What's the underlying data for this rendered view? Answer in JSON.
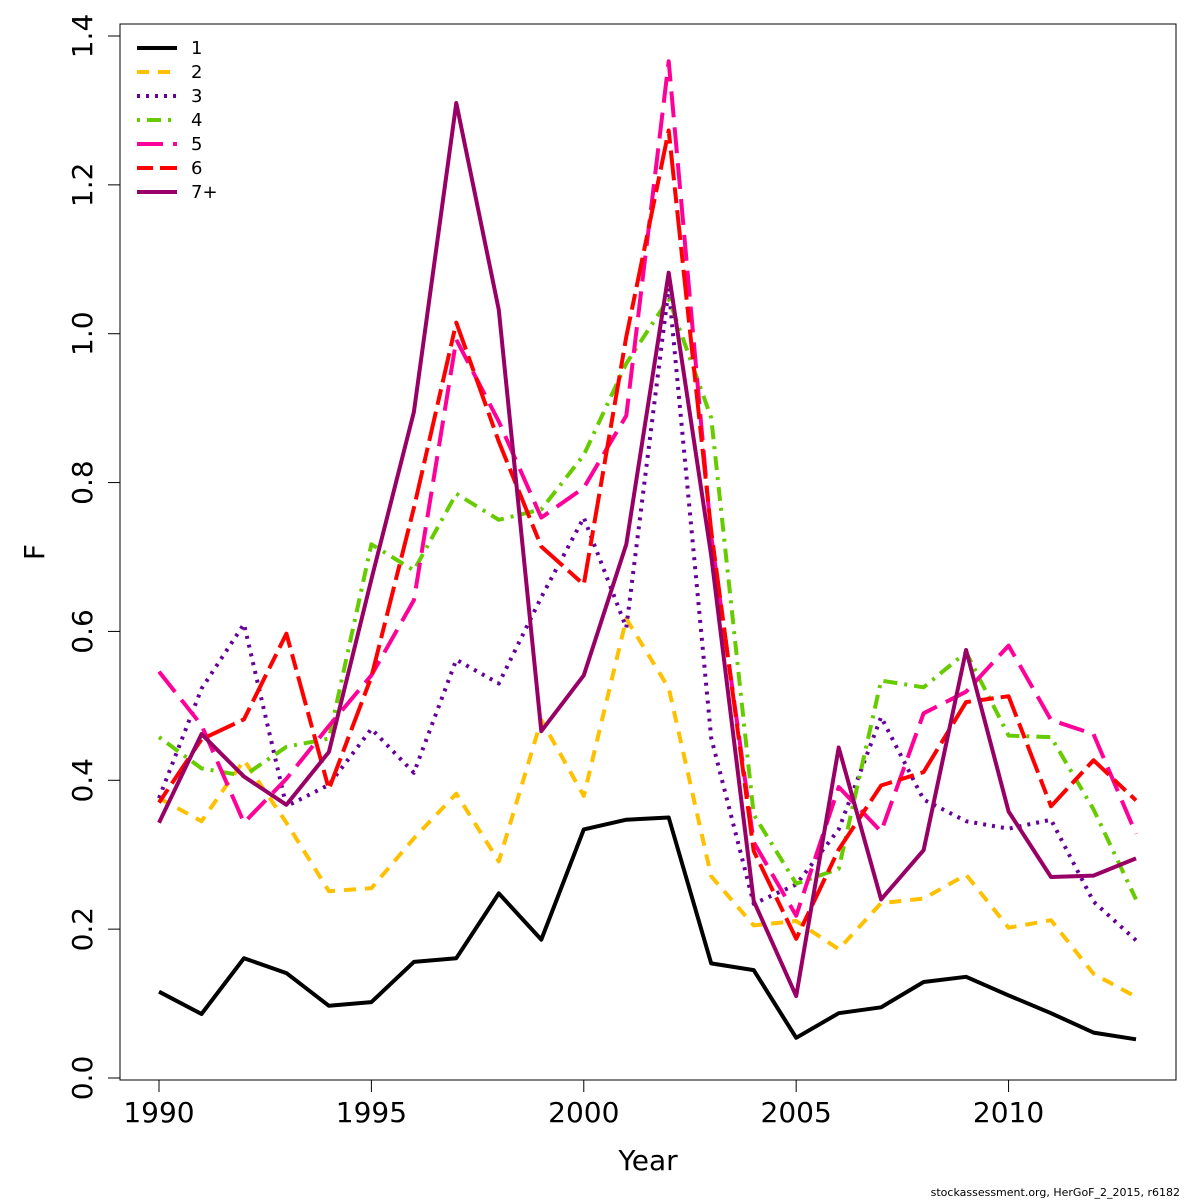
{
  "chart_data": {
    "type": "line",
    "title": "",
    "xlabel": "Year",
    "ylabel": "F",
    "xlim": [
      1989,
      2014
    ],
    "ylim": [
      0.0,
      1.4
    ],
    "x_ticks": [
      1990,
      1995,
      2000,
      2005,
      2010
    ],
    "y_ticks": [
      "0.0",
      "0.2",
      "0.4",
      "0.6",
      "0.8",
      "1.0",
      "1.2",
      "1.4"
    ],
    "legend_position": "top-left",
    "grid": false,
    "x": [
      1990,
      1991,
      1992,
      1993,
      1994,
      1995,
      1996,
      1997,
      1998,
      1999,
      2000,
      2001,
      2002,
      2003,
      2004,
      2005,
      2006,
      2007,
      2008,
      2009,
      2010,
      2011,
      2012,
      2013
    ],
    "series": [
      {
        "name": "1",
        "color": "#000000",
        "dash": "solid",
        "values": [
          0.116,
          0.086,
          0.161,
          0.141,
          0.097,
          0.102,
          0.156,
          0.161,
          0.248,
          0.186,
          0.334,
          0.347,
          0.35,
          0.154,
          0.145,
          0.054,
          0.087,
          0.095,
          0.129,
          0.136,
          0.111,
          0.087,
          0.061,
          0.052
        ]
      },
      {
        "name": "2",
        "color": "#ffc000",
        "dash": "dashed",
        "values": [
          0.376,
          0.345,
          0.427,
          0.343,
          0.251,
          0.255,
          0.322,
          0.382,
          0.291,
          0.481,
          0.379,
          0.617,
          0.524,
          0.271,
          0.205,
          0.211,
          0.173,
          0.235,
          0.241,
          0.273,
          0.202,
          0.212,
          0.14,
          0.109
        ]
      },
      {
        "name": "3",
        "color": "#660099",
        "dash": "dotted",
        "values": [
          0.376,
          0.523,
          0.61,
          0.365,
          0.394,
          0.469,
          0.41,
          0.562,
          0.53,
          0.646,
          0.753,
          0.605,
          1.061,
          0.457,
          0.234,
          0.26,
          0.334,
          0.485,
          0.374,
          0.345,
          0.335,
          0.347,
          0.237,
          0.185
        ]
      },
      {
        "name": "4",
        "color": "#66cc00",
        "dash": "dotdash",
        "values": [
          0.458,
          0.416,
          0.406,
          0.445,
          0.456,
          0.717,
          0.682,
          0.785,
          0.75,
          0.764,
          0.837,
          0.96,
          1.047,
          0.887,
          0.354,
          0.261,
          0.281,
          0.534,
          0.525,
          0.572,
          0.46,
          0.458,
          0.361,
          0.24
        ]
      },
      {
        "name": "5",
        "color": "#ff0099",
        "dash": "longdash",
        "values": [
          0.546,
          0.474,
          0.343,
          0.402,
          0.473,
          0.541,
          0.642,
          0.992,
          0.882,
          0.753,
          0.793,
          0.89,
          1.366,
          0.728,
          0.317,
          0.218,
          0.391,
          0.331,
          0.49,
          0.519,
          0.581,
          0.481,
          0.462,
          0.328
        ]
      },
      {
        "name": "6",
        "color": "#ff0000",
        "dash": "twodash",
        "values": [
          0.37,
          0.455,
          0.482,
          0.597,
          0.388,
          0.539,
          0.766,
          1.015,
          0.855,
          0.714,
          0.663,
          0.996,
          1.273,
          0.735,
          0.305,
          0.187,
          0.307,
          0.393,
          0.411,
          0.505,
          0.513,
          0.365,
          0.427,
          0.373
        ]
      },
      {
        "name": "7+",
        "color": "#990066",
        "dash": "solid",
        "values": [
          0.343,
          0.462,
          0.405,
          0.367,
          0.438,
          0.67,
          0.895,
          1.31,
          1.032,
          0.466,
          0.541,
          0.717,
          1.082,
          0.702,
          0.238,
          0.11,
          0.444,
          0.24,
          0.306,
          0.575,
          0.358,
          0.27,
          0.272,
          0.295
        ]
      }
    ]
  },
  "footer": {
    "credit": "stockassessment.org, HerGoF_2_2015, r6182"
  }
}
